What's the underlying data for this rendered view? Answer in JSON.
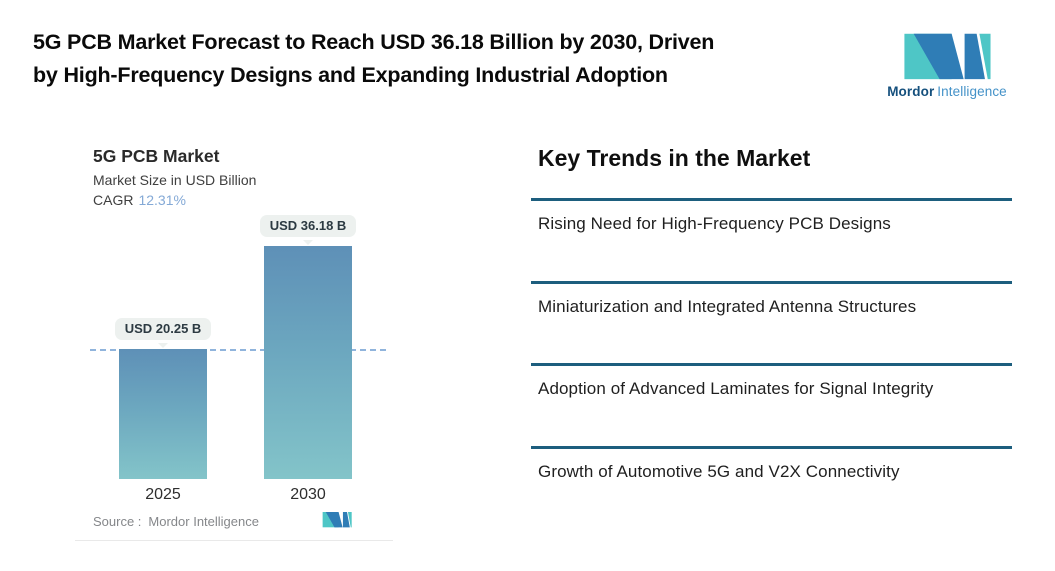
{
  "header": {
    "title_line1": "5G PCB Market Forecast to Reach USD 36.18 Billion by 2030, Driven",
    "title_line2": "by High-Frequency Designs and Expanding Industrial Adoption"
  },
  "brand": {
    "name_bold": "Mordor",
    "name_light": "Intelligence",
    "colors": {
      "teal": "#4ec6c6",
      "blue": "#2f7db6"
    }
  },
  "chart_data": {
    "type": "bar",
    "title": "5G PCB Market",
    "subtitle": "Market Size in USD Billion",
    "cagr_label": "CAGR",
    "cagr_value": "12.31%",
    "categories": [
      "2025",
      "2030"
    ],
    "values": [
      20.25,
      36.18
    ],
    "value_labels": [
      "USD 20.25 B",
      "USD 36.18 B"
    ],
    "ylabel": "USD Billion",
    "ylim": [
      0,
      36.18
    ],
    "source_label": "Source :",
    "source_value": "Mordor Intelligence",
    "colors": {
      "bar_top": "#5e90b7",
      "bar_bottom": "#83c4c9",
      "dashed_line": "#90b4dc",
      "cagr_accent": "#84a9d6"
    }
  },
  "trends": {
    "heading": "Key Trends in the Market",
    "divider_color": "#1d5e7e",
    "items": [
      "Rising Need for High-Frequency PCB Designs",
      "Miniaturization and Integrated Antenna Structures",
      "Adoption of Advanced Laminates for Signal Integrity",
      "Growth of Automotive 5G and V2X Connectivity"
    ]
  }
}
